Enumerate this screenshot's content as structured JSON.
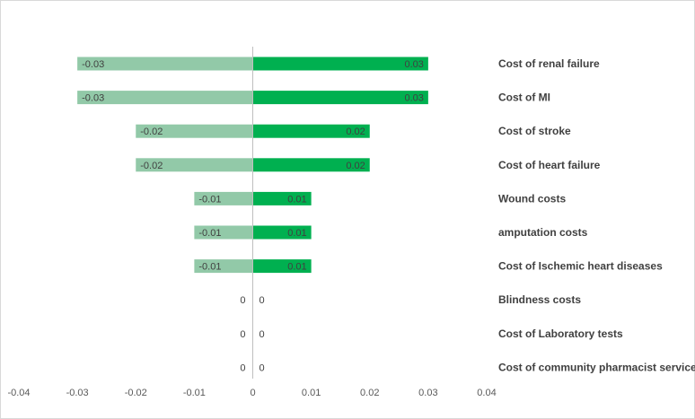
{
  "chart_data": {
    "type": "bar",
    "orientation": "horizontal",
    "style": "tornado",
    "categories": [
      "Cost of renal failure",
      "Cost of MI",
      "Cost of stroke",
      "Cost of heart failure",
      "Wound costs",
      "amputation costs",
      "Cost of Ischemic heart diseases",
      "Blindness costs",
      "Cost of Laboratory tests",
      "Cost of community pharmacist service"
    ],
    "series": [
      {
        "values": [
          -0.03,
          -0.03,
          -0.02,
          -0.02,
          -0.01,
          -0.01,
          -0.01,
          0,
          0,
          0
        ],
        "labels": [
          "-0.03",
          "-0.03",
          "-0.02",
          "-0.02",
          "-0.01",
          "-0.01",
          "-0.01",
          "0",
          "0",
          "0"
        ],
        "color": "#92c9a8"
      },
      {
        "values": [
          0.03,
          0.03,
          0.02,
          0.02,
          0.01,
          0.01,
          0.01,
          0,
          0,
          0
        ],
        "labels": [
          "0.03",
          "0.03",
          "0.02",
          "0.02",
          "0.01",
          "0.01",
          "0.01",
          "0",
          "0",
          "0"
        ],
        "color": "#00b050"
      }
    ],
    "xlim": [
      -0.04,
      0.04
    ],
    "xticks": [
      "-0.04",
      "-0.03",
      "-0.02",
      "-0.01",
      "0",
      "0.01",
      "0.02",
      "0.03",
      "0.04"
    ],
    "title": "",
    "xlabel": "",
    "ylabel": "",
    "grid": false,
    "legend": "none"
  }
}
